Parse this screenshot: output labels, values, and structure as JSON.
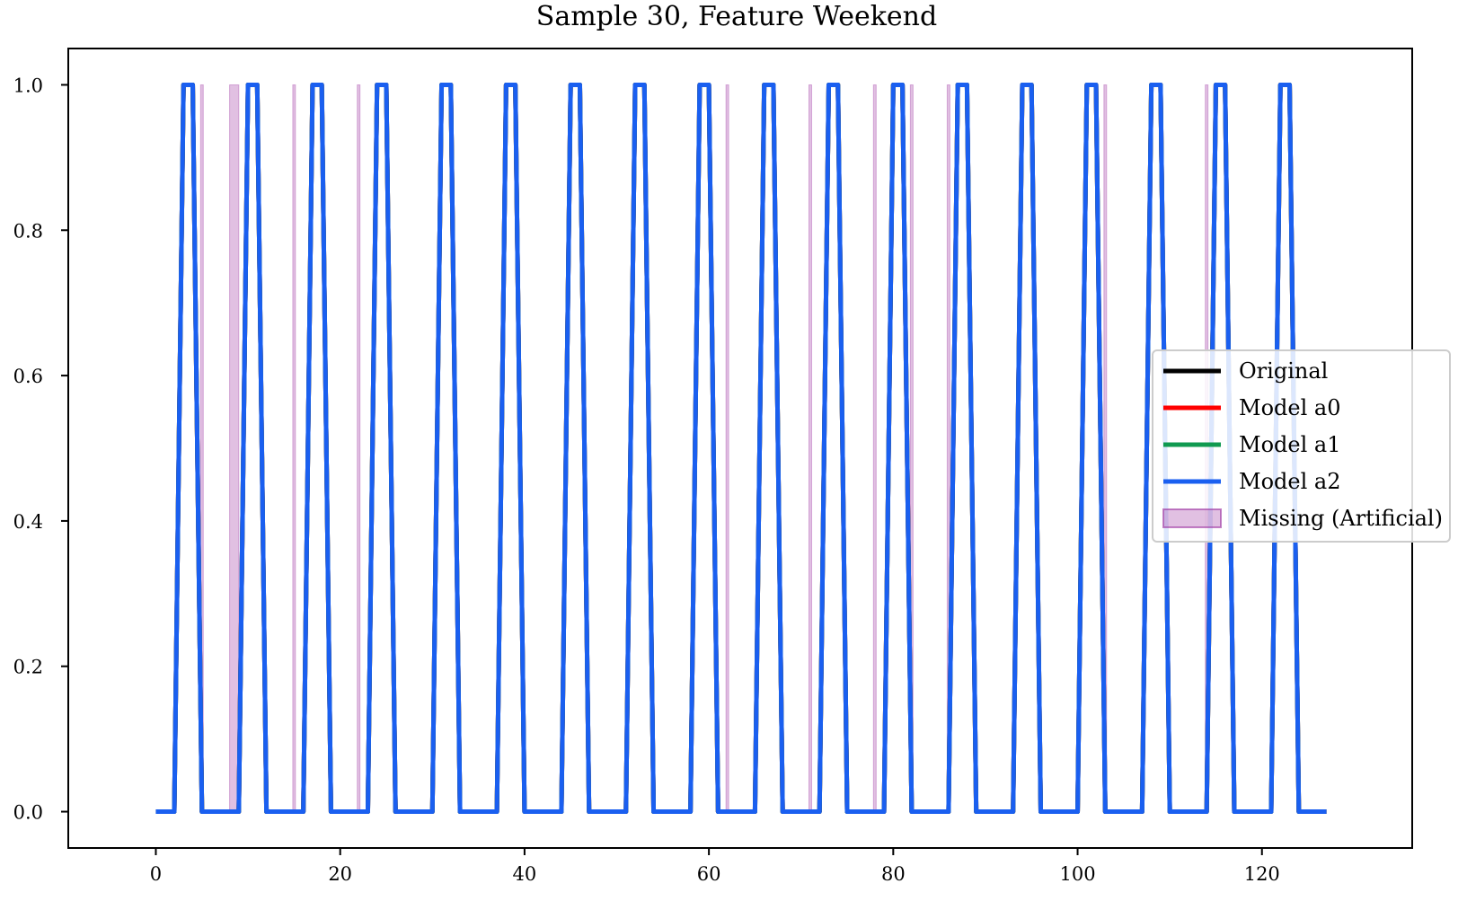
{
  "chart_data": {
    "type": "line",
    "title": "Sample 30, Feature Weekend",
    "xlabel": "",
    "ylabel": "",
    "xlim": [
      -9.5,
      136.3
    ],
    "ylim": [
      -0.05,
      1.05
    ],
    "xticks": [
      0,
      20,
      40,
      60,
      80,
      100,
      120
    ],
    "xtick_labels": [
      "0",
      "20",
      "40",
      "60",
      "80",
      "100",
      "120"
    ],
    "yticks": [
      0.0,
      0.2,
      0.4,
      0.6,
      0.8,
      1.0
    ],
    "ytick_labels": [
      "0.0",
      "0.2",
      "0.4",
      "0.6",
      "0.8",
      "1.0"
    ],
    "grid": false,
    "legend_position": "center-right",
    "step_high_days": [
      3,
      10,
      17,
      24,
      31,
      38,
      45,
      52,
      59,
      66,
      73,
      80,
      87,
      94,
      101,
      108,
      115,
      122
    ],
    "series": [
      {
        "name": "Original",
        "color": "#000000",
        "x": [
          0,
          2,
          3,
          4,
          5,
          9,
          10,
          11,
          12,
          16,
          17,
          18,
          19,
          23,
          24,
          25,
          26,
          30,
          31,
          32,
          33,
          37,
          38,
          39,
          40,
          44,
          45,
          46,
          47,
          51,
          52,
          53,
          54,
          58,
          59,
          60,
          61,
          65,
          66,
          67,
          68,
          72,
          73,
          74,
          75,
          79,
          80,
          81,
          82,
          86,
          87,
          88,
          89,
          93,
          94,
          95,
          96,
          100,
          101,
          102,
          103,
          107,
          108,
          109,
          110,
          114,
          115,
          116,
          117,
          121,
          122,
          123,
          124,
          127
        ],
        "y": [
          0,
          0,
          1,
          1,
          0,
          0,
          1,
          1,
          0,
          0,
          1,
          1,
          0,
          0,
          1,
          1,
          0,
          0,
          1,
          1,
          0,
          0,
          1,
          1,
          0,
          0,
          1,
          1,
          0,
          0,
          1,
          1,
          0,
          0,
          1,
          1,
          0,
          0,
          1,
          1,
          0,
          0,
          1,
          1,
          0,
          0,
          1,
          1,
          0,
          0,
          1,
          1,
          0,
          0,
          1,
          1,
          0,
          0,
          1,
          1,
          0,
          0,
          1,
          1,
          0,
          0,
          1,
          1,
          0,
          0,
          1,
          1,
          0,
          0
        ]
      },
      {
        "name": "Model a0",
        "color": "#ff0000",
        "x": [
          0,
          2,
          3,
          4,
          5,
          9,
          10,
          11,
          12,
          16,
          17,
          18,
          19,
          23,
          24,
          25,
          26,
          30,
          31,
          32,
          33,
          37,
          38,
          39,
          40,
          44,
          45,
          46,
          47,
          51,
          52,
          53,
          54,
          58,
          59,
          60,
          61,
          65,
          66,
          67,
          68,
          72,
          73,
          74,
          75,
          79,
          80,
          81,
          82,
          86,
          87,
          88,
          89,
          93,
          94,
          95,
          96,
          100,
          101,
          102,
          103,
          107,
          108,
          109,
          110,
          114,
          115,
          116,
          117,
          121,
          122,
          123,
          124,
          127
        ],
        "y": [
          0,
          0,
          1,
          1,
          0,
          0,
          1,
          1,
          0,
          0,
          1,
          1,
          0,
          0,
          1,
          1,
          0,
          0,
          1,
          1,
          0,
          0,
          1,
          1,
          0,
          0,
          1,
          1,
          0,
          0,
          1,
          1,
          0,
          0,
          1,
          1,
          0,
          0,
          1,
          1,
          0,
          0,
          1,
          1,
          0,
          0,
          1,
          1,
          0,
          0,
          1,
          1,
          0,
          0,
          1,
          1,
          0,
          0,
          1,
          1,
          0,
          0,
          1,
          1,
          0,
          0,
          1,
          1,
          0,
          0,
          1,
          1,
          0,
          0
        ]
      },
      {
        "name": "Model a1",
        "color": "#109a50",
        "x": [
          0,
          2,
          3,
          4,
          5,
          9,
          10,
          11,
          12,
          16,
          17,
          18,
          19,
          23,
          24,
          25,
          26,
          30,
          31,
          32,
          33,
          37,
          38,
          39,
          40,
          44,
          45,
          46,
          47,
          51,
          52,
          53,
          54,
          58,
          59,
          60,
          61,
          65,
          66,
          67,
          68,
          72,
          73,
          74,
          75,
          79,
          80,
          81,
          82,
          86,
          87,
          88,
          89,
          93,
          94,
          95,
          96,
          100,
          101,
          102,
          103,
          107,
          108,
          109,
          110,
          114,
          115,
          116,
          117,
          121,
          122,
          123,
          124,
          127
        ],
        "y": [
          0,
          0,
          1,
          1,
          0,
          0,
          1,
          1,
          0,
          0,
          1,
          1,
          0,
          0,
          1,
          1,
          0,
          0,
          1,
          1,
          0,
          0,
          1,
          1,
          0,
          0,
          1,
          1,
          0,
          0,
          1,
          1,
          0,
          0,
          1,
          1,
          0,
          0,
          1,
          1,
          0,
          0,
          1,
          1,
          0,
          0,
          1,
          1,
          0,
          0,
          1,
          1,
          0,
          0,
          1,
          1,
          0,
          0,
          1,
          1,
          0,
          0,
          1,
          1,
          0,
          0,
          1,
          1,
          0,
          0,
          1,
          1,
          0,
          0
        ]
      },
      {
        "name": "Model a2",
        "color": "#1a5ff0",
        "x": [
          0,
          2,
          3,
          4,
          5,
          9,
          10,
          11,
          12,
          16,
          17,
          18,
          19,
          23,
          24,
          25,
          26,
          30,
          31,
          32,
          33,
          37,
          38,
          39,
          40,
          44,
          45,
          46,
          47,
          51,
          52,
          53,
          54,
          58,
          59,
          60,
          61,
          65,
          66,
          67,
          68,
          72,
          73,
          74,
          75,
          79,
          80,
          81,
          82,
          86,
          87,
          88,
          89,
          93,
          94,
          95,
          96,
          100,
          101,
          102,
          103,
          107,
          108,
          109,
          110,
          114,
          115,
          116,
          117,
          121,
          122,
          123,
          124,
          127
        ],
        "y": [
          0,
          0,
          1,
          1,
          0,
          0,
          1,
          1,
          0,
          0,
          1,
          1,
          0,
          0,
          1,
          1,
          0,
          0,
          1,
          1,
          0,
          0,
          1,
          1,
          0,
          0,
          1,
          1,
          0,
          0,
          1,
          1,
          0,
          0,
          1,
          1,
          0,
          0,
          1,
          1,
          0,
          0,
          1,
          1,
          0,
          0,
          1,
          1,
          0,
          0,
          1,
          1,
          0,
          0,
          1,
          1,
          0,
          0,
          1,
          1,
          0,
          0,
          1,
          1,
          0,
          0,
          1,
          1,
          0,
          0,
          1,
          1,
          0,
          0
        ]
      }
    ],
    "missing": {
      "name": "Missing (Artificial)",
      "color": "#9b30a0",
      "ranges": [
        [
          5,
          5
        ],
        [
          8,
          9
        ],
        [
          15,
          15
        ],
        [
          22,
          22
        ],
        [
          62,
          62
        ],
        [
          71,
          71
        ],
        [
          78,
          78
        ],
        [
          82,
          82
        ],
        [
          86,
          86
        ],
        [
          103,
          103
        ],
        [
          114,
          114
        ]
      ]
    }
  }
}
